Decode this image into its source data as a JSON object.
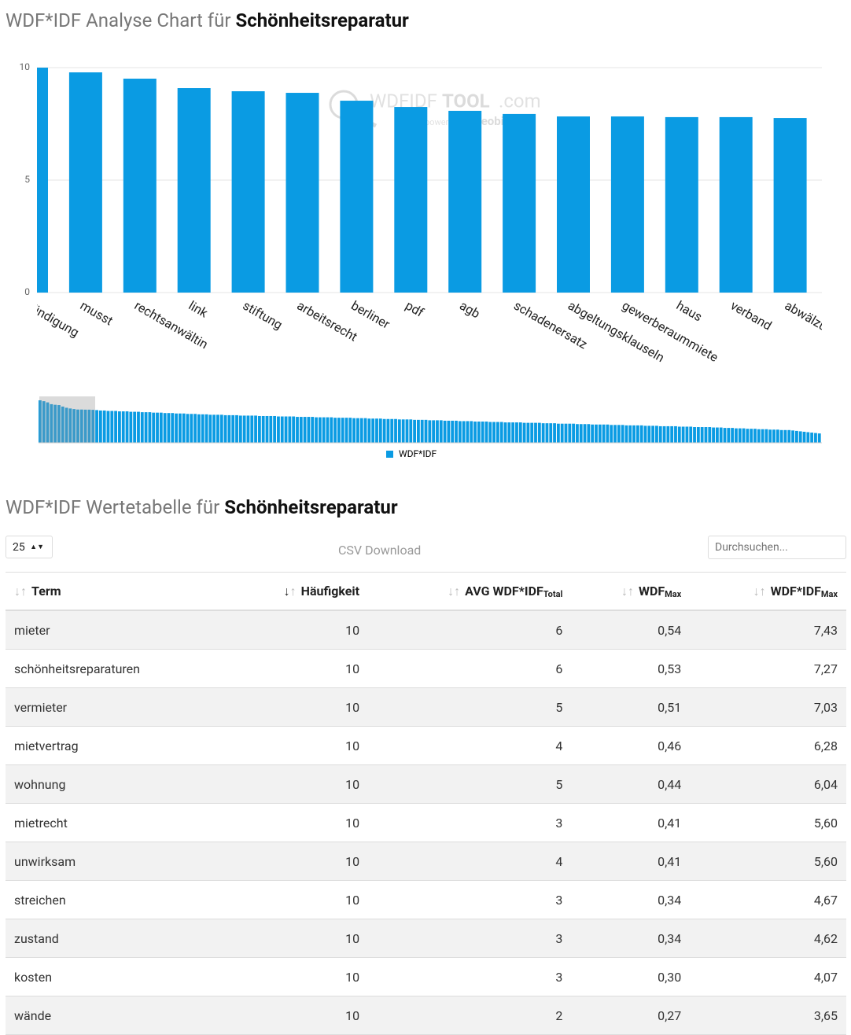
{
  "chart_data": {
    "type": "bar",
    "title": "WDF*IDF Analyse Chart für",
    "title_keyword": "Schönheitsreparatur",
    "categories": [
      "kündigung",
      "musst",
      "rechtsanwältin",
      "link",
      "stiftung",
      "arbeitsrecht",
      "berliner",
      "pdf",
      "agb",
      "schadenersatz",
      "abgeltungsklauseln",
      "gewerberaummiete",
      "haus",
      "verband",
      "abwälzung"
    ],
    "series": [
      {
        "name": "WDF*IDF",
        "color": "#0a9be3",
        "values": [
          10.0,
          9.79,
          9.51,
          9.09,
          8.95,
          8.88,
          8.53,
          8.25,
          8.08,
          7.94,
          7.83,
          7.83,
          7.8,
          7.8,
          7.76
        ]
      }
    ],
    "ylim": [
      0,
      10
    ],
    "yticks": [
      0,
      5,
      10
    ],
    "grid": true,
    "navigator_values": [
      7.7,
      7.6,
      7.6,
      7.5,
      7.5,
      7.5,
      7.4,
      7.4,
      7.4,
      7.3,
      7.3,
      7.3,
      7.2,
      7.2,
      7.2,
      7.1,
      7.1,
      7.1,
      7.0,
      7.0,
      7.0,
      6.9,
      6.9,
      6.9,
      6.8,
      6.8,
      6.8,
      6.7,
      6.7,
      6.7,
      6.6,
      6.6,
      6.6,
      6.6,
      6.5,
      6.5,
      6.5,
      6.5,
      6.4,
      6.4,
      6.4,
      6.4,
      6.4,
      6.3,
      6.3,
      6.3,
      6.3,
      6.3,
      6.2,
      6.2,
      6.2,
      6.2,
      6.2,
      6.1,
      6.1,
      6.1,
      6.1,
      6.1,
      6.0,
      6.0,
      6.0,
      6.0,
      6.0,
      5.9,
      5.9,
      5.9,
      5.9,
      5.9,
      5.8,
      5.8,
      5.8,
      5.8,
      5.7,
      5.7,
      5.7,
      5.7,
      5.6,
      5.6,
      5.6,
      5.6,
      5.5,
      5.5,
      5.5,
      5.5,
      5.4,
      5.4,
      5.4,
      5.4,
      5.3,
      5.3,
      5.3,
      5.3,
      5.2,
      5.2,
      5.2,
      5.2,
      5.1,
      5.1,
      5.1,
      5.1,
      5.0,
      5.0,
      5.0,
      5.0,
      4.9,
      4.9,
      4.9,
      4.9,
      4.8,
      4.8,
      4.8,
      4.8,
      4.8,
      4.7,
      4.7,
      4.7,
      4.7,
      4.7,
      4.6,
      4.6,
      4.6,
      4.6,
      4.5,
      4.5,
      4.5,
      4.5,
      4.5,
      4.4,
      4.4,
      4.4,
      4.4,
      4.3,
      4.3,
      4.3,
      4.3,
      4.3,
      4.2,
      4.2,
      4.2,
      4.2,
      4.1,
      4.1,
      4.1,
      4.1,
      4.1,
      4.0,
      4.0,
      4.0,
      4.0,
      3.9,
      3.9,
      3.9,
      3.9,
      3.9,
      3.8,
      3.8,
      3.8,
      3.8,
      3.7,
      3.7,
      3.7,
      3.7,
      3.7,
      3.6,
      3.6,
      3.6,
      3.5,
      3.5,
      3.5,
      3.4,
      3.4,
      3.4,
      3.3,
      3.3,
      3.3,
      3.2,
      3.2,
      3.2,
      3.1,
      3.1,
      3.1,
      3.0,
      3.0,
      3.0,
      2.9,
      2.8,
      2.7,
      2.6,
      2.5,
      2.4,
      2.3,
      2.2
    ],
    "watermark": {
      "brand": "WDFIDF",
      "brand_bold": "TOOL",
      "domain": ".com",
      "powered": "powered by",
      "partner": "seobility"
    }
  },
  "table_section": {
    "title": "WDF*IDF Wertetabelle für",
    "title_keyword": "Schönheitsreparatur",
    "page_length": "25",
    "csv": "CSV Download",
    "search_placeholder": "Durchsuchen...",
    "headers": [
      {
        "text": "Term"
      },
      {
        "text": "Häufigkeit"
      },
      {
        "text": "AVG WDF*IDF",
        "sub": "Total"
      },
      {
        "text": "WDF",
        "sub": "Max"
      },
      {
        "text": "WDF*IDF",
        "sub": "Max"
      }
    ],
    "rows": [
      [
        "mieter",
        "10",
        "6",
        "0,54",
        "7,43"
      ],
      [
        "schönheitsreparaturen",
        "10",
        "6",
        "0,53",
        "7,27"
      ],
      [
        "vermieter",
        "10",
        "5",
        "0,51",
        "7,03"
      ],
      [
        "mietvertrag",
        "10",
        "4",
        "0,46",
        "6,28"
      ],
      [
        "wohnung",
        "10",
        "5",
        "0,44",
        "6,04"
      ],
      [
        "mietrecht",
        "10",
        "3",
        "0,41",
        "5,60"
      ],
      [
        "unwirksam",
        "10",
        "4",
        "0,41",
        "5,60"
      ],
      [
        "streichen",
        "10",
        "3",
        "0,34",
        "4,67"
      ],
      [
        "zustand",
        "10",
        "3",
        "0,34",
        "4,62"
      ],
      [
        "kosten",
        "10",
        "3",
        "0,30",
        "4,07"
      ],
      [
        "wände",
        "10",
        "2",
        "0,27",
        "3,65"
      ]
    ]
  }
}
